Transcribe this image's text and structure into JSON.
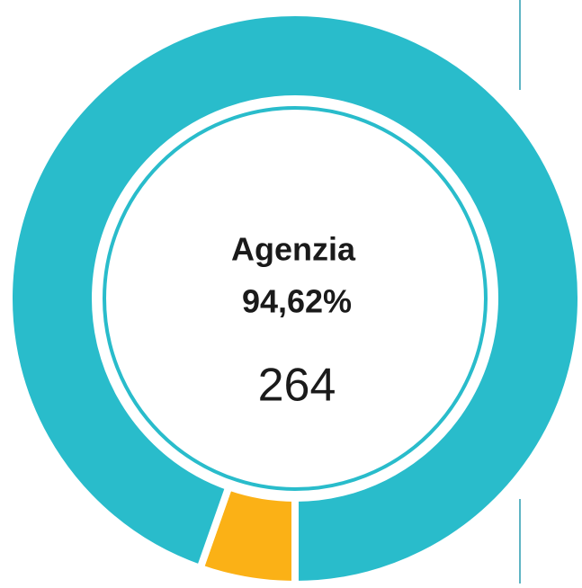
{
  "chart_data": {
    "type": "pie",
    "donut": true,
    "categories": [
      "Agenzia",
      null
    ],
    "values": [
      94.62,
      5.38
    ],
    "value_labels": [
      "94,62%",
      null
    ],
    "counts": [
      264,
      null
    ],
    "colors": [
      "#29bccb",
      "#fbb116"
    ]
  }
}
